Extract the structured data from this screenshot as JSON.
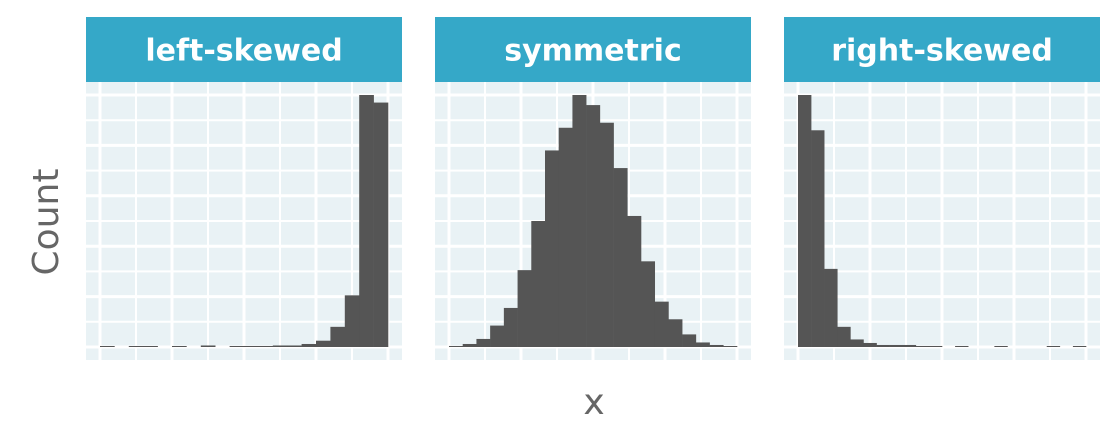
{
  "chart_data": {
    "type": "bar",
    "xlabel": "x",
    "ylabel": "Count",
    "grid": true,
    "legend": "none",
    "colors": {
      "strip": "#35a8c8",
      "strip_text": "#ffffff",
      "panel_bg": "#e9f2f5",
      "grid": "#ffffff",
      "bar": "#555555",
      "axis_text": "#666666"
    },
    "ylim": [
      0,
      100
    ],
    "panels": [
      {
        "title": "left-skewed",
        "values": [
          0.2,
          0.0,
          0.2,
          0.2,
          0.0,
          0.2,
          0.0,
          0.6,
          0.0,
          0.2,
          0.4,
          0.4,
          0.6,
          0.6,
          1.2,
          2.5,
          8.0,
          20.5,
          100,
          97
        ]
      },
      {
        "title": "symmetric",
        "values": [
          0.4,
          1.2,
          3.2,
          8.5,
          15.5,
          30.5,
          50,
          78,
          87,
          100,
          96,
          89,
          71,
          52,
          34,
          18,
          11,
          5,
          1.8,
          0.8,
          0.3
        ]
      },
      {
        "title": "right-skewed",
        "values": [
          100,
          86,
          31,
          8,
          3,
          1.6,
          0.8,
          0.8,
          0.8,
          0.4,
          0.4,
          0.0,
          0.4,
          0.0,
          0.0,
          0.2,
          0.0,
          0.0,
          0.0,
          0.2,
          0.0,
          0.2
        ]
      }
    ]
  }
}
